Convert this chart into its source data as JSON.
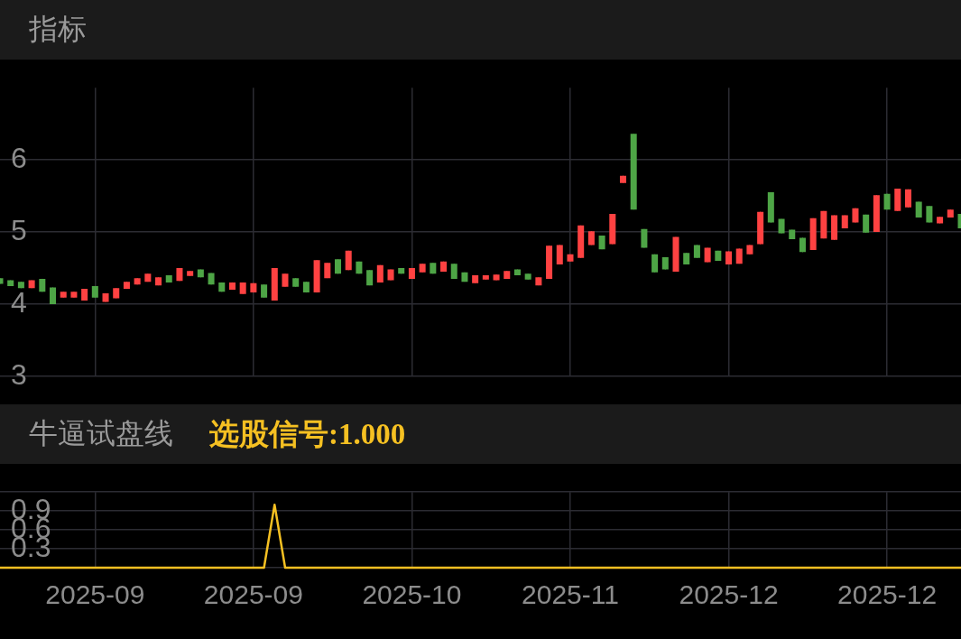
{
  "chart_data": [
    {
      "type": "candlestick",
      "title": "指标",
      "categories": [
        null,
        null,
        null,
        null,
        null,
        null,
        null,
        null,
        null,
        "2025-09",
        null,
        null,
        null,
        null,
        null,
        null,
        null,
        null,
        null,
        null,
        null,
        null,
        null,
        null,
        "2025-09",
        null,
        null,
        null,
        null,
        null,
        null,
        null,
        null,
        null,
        null,
        null,
        null,
        null,
        null,
        "2025-10",
        null,
        null,
        null,
        null,
        null,
        null,
        null,
        null,
        null,
        null,
        null,
        null,
        null,
        null,
        "2025-11",
        null,
        null,
        null,
        null,
        null,
        null,
        null,
        null,
        null,
        null,
        null,
        null,
        null,
        null,
        "2025-12",
        null,
        null,
        null,
        null,
        null,
        null,
        null,
        null,
        null,
        null,
        null,
        null,
        null,
        null,
        "2025-12",
        null,
        null,
        null,
        null,
        null,
        null,
        null
      ],
      "ohlc": [
        [
          4.36,
          4.36,
          4.28,
          4.28
        ],
        [
          4.33,
          4.33,
          4.25,
          4.25
        ],
        [
          4.31,
          4.31,
          4.22,
          4.22
        ],
        [
          4.22,
          4.33,
          4.22,
          4.33
        ],
        [
          4.35,
          4.35,
          4.17,
          4.17
        ],
        [
          4.23,
          4.23,
          4.0,
          4.0
        ],
        [
          4.09,
          4.17,
          4.09,
          4.17
        ],
        [
          4.09,
          4.17,
          4.09,
          4.17
        ],
        [
          4.05,
          4.21,
          4.05,
          4.21
        ],
        [
          4.25,
          4.25,
          4.09,
          4.09
        ],
        [
          4.03,
          4.15,
          4.03,
          4.15
        ],
        [
          4.08,
          4.22,
          4.08,
          4.22
        ],
        [
          4.21,
          4.31,
          4.21,
          4.31
        ],
        [
          4.27,
          4.36,
          4.27,
          4.36
        ],
        [
          4.31,
          4.42,
          4.31,
          4.42
        ],
        [
          4.26,
          4.37,
          4.26,
          4.37
        ],
        [
          4.4,
          4.4,
          4.3,
          4.3
        ],
        [
          4.32,
          4.5,
          4.32,
          4.5
        ],
        [
          4.39,
          4.46,
          4.39,
          4.46
        ],
        [
          4.48,
          4.48,
          4.37,
          4.37
        ],
        [
          4.43,
          4.43,
          4.27,
          4.27
        ],
        [
          4.3,
          4.3,
          4.17,
          4.17
        ],
        [
          4.2,
          4.3,
          4.2,
          4.3
        ],
        [
          4.14,
          4.3,
          4.14,
          4.3
        ],
        [
          4.16,
          4.29,
          4.16,
          4.29
        ],
        [
          4.27,
          4.27,
          4.09,
          4.09
        ],
        [
          4.05,
          4.5,
          4.05,
          4.5
        ],
        [
          4.24,
          4.42,
          4.24,
          4.42
        ],
        [
          4.36,
          4.36,
          4.24,
          4.24
        ],
        [
          4.31,
          4.31,
          4.16,
          4.16
        ],
        [
          4.16,
          4.61,
          4.16,
          4.61
        ],
        [
          4.36,
          4.57,
          4.36,
          4.57
        ],
        [
          4.62,
          4.62,
          4.42,
          4.42
        ],
        [
          4.47,
          4.74,
          4.47,
          4.74
        ],
        [
          4.59,
          4.59,
          4.42,
          4.42
        ],
        [
          4.47,
          4.47,
          4.26,
          4.26
        ],
        [
          4.3,
          4.54,
          4.3,
          4.54
        ],
        [
          4.33,
          4.48,
          4.33,
          4.48
        ],
        [
          4.5,
          4.5,
          4.42,
          4.42
        ],
        [
          4.35,
          4.5,
          4.35,
          4.5
        ],
        [
          4.44,
          4.56,
          4.44,
          4.56
        ],
        [
          4.57,
          4.57,
          4.42,
          4.42
        ],
        [
          4.45,
          4.59,
          4.45,
          4.59
        ],
        [
          4.56,
          4.56,
          4.35,
          4.35
        ],
        [
          4.44,
          4.44,
          4.31,
          4.31
        ],
        [
          4.29,
          4.4,
          4.29,
          4.4
        ],
        [
          4.34,
          4.4,
          4.34,
          4.4
        ],
        [
          4.33,
          4.41,
          4.33,
          4.41
        ],
        [
          4.35,
          4.46,
          4.35,
          4.46
        ],
        [
          4.48,
          4.48,
          4.4,
          4.4
        ],
        [
          4.42,
          4.42,
          4.34,
          4.34
        ],
        [
          4.26,
          4.37,
          4.26,
          4.37
        ],
        [
          4.35,
          4.81,
          4.35,
          4.81
        ],
        [
          4.55,
          4.82,
          4.55,
          4.82
        ],
        [
          4.59,
          4.69,
          4.59,
          4.69
        ],
        [
          4.64,
          5.09,
          4.64,
          5.09
        ],
        [
          4.82,
          5.01,
          4.82,
          5.01
        ],
        [
          4.95,
          4.95,
          4.76,
          4.76
        ],
        [
          4.83,
          5.25,
          4.83,
          5.25
        ],
        [
          5.68,
          5.78,
          5.68,
          5.78
        ],
        [
          6.36,
          6.36,
          5.31,
          5.31
        ],
        [
          5.04,
          5.04,
          4.78,
          4.78
        ],
        [
          4.69,
          4.69,
          4.44,
          4.44
        ],
        [
          4.65,
          4.65,
          4.48,
          4.48
        ],
        [
          4.45,
          4.93,
          4.45,
          4.93
        ],
        [
          4.71,
          4.71,
          4.55,
          4.55
        ],
        [
          4.82,
          4.82,
          4.64,
          4.64
        ],
        [
          4.58,
          4.78,
          4.58,
          4.78
        ],
        [
          4.74,
          4.74,
          4.6,
          4.6
        ],
        [
          4.55,
          4.73,
          4.55,
          4.73
        ],
        [
          4.56,
          4.77,
          4.56,
          4.77
        ],
        [
          4.69,
          4.82,
          4.69,
          4.82
        ],
        [
          4.83,
          5.28,
          4.83,
          5.28
        ],
        [
          5.55,
          5.55,
          5.13,
          5.13
        ],
        [
          5.18,
          5.18,
          4.98,
          4.98
        ],
        [
          5.03,
          5.03,
          4.9,
          4.9
        ],
        [
          4.92,
          4.92,
          4.72,
          4.72
        ],
        [
          4.75,
          5.19,
          4.75,
          5.19
        ],
        [
          4.91,
          5.29,
          4.91,
          5.29
        ],
        [
          4.89,
          5.23,
          4.89,
          5.23
        ],
        [
          5.05,
          5.23,
          5.05,
          5.23
        ],
        [
          5.13,
          5.33,
          5.13,
          5.33
        ],
        [
          5.24,
          5.24,
          4.99,
          4.99
        ],
        [
          5.0,
          5.51,
          5.0,
          5.51
        ],
        [
          5.53,
          5.53,
          5.31,
          5.31
        ],
        [
          5.29,
          5.6,
          5.29,
          5.6
        ],
        [
          5.34,
          5.59,
          5.34,
          5.59
        ],
        [
          5.42,
          5.42,
          5.2,
          5.2
        ],
        [
          5.36,
          5.36,
          5.13,
          5.13
        ],
        [
          5.12,
          5.21,
          5.12,
          5.21
        ],
        [
          5.2,
          5.31,
          5.2,
          5.31
        ],
        [
          5.25,
          5.25,
          5.05,
          5.05
        ]
      ],
      "colors": [
        "#4ea546",
        "#4ea546",
        "#4ea546",
        "#ff4242",
        "#4ea546",
        "#4ea546",
        "#ff4242",
        "#ff4242",
        "#ff4242",
        "#4ea546",
        "#ff4242",
        "#ff4242",
        "#ff4242",
        "#ff4242",
        "#ff4242",
        "#ff4242",
        "#4ea546",
        "#ff4242",
        "#ff4242",
        "#4ea546",
        "#4ea546",
        "#4ea546",
        "#ff4242",
        "#ff4242",
        "#ff4242",
        "#4ea546",
        "#ff4242",
        "#ff4242",
        "#4ea546",
        "#4ea546",
        "#ff4242",
        "#ff4242",
        "#4ea546",
        "#ff4242",
        "#4ea546",
        "#4ea546",
        "#ff4242",
        "#ff4242",
        "#4ea546",
        "#ff4242",
        "#ff4242",
        "#4ea546",
        "#ff4242",
        "#4ea546",
        "#4ea546",
        "#ff4242",
        "#ff4242",
        "#ff4242",
        "#ff4242",
        "#4ea546",
        "#4ea546",
        "#ff4242",
        "#ff4242",
        "#ff4242",
        "#ff4242",
        "#ff4242",
        "#ff4242",
        "#4ea546",
        "#ff4242",
        "#ff4242",
        "#4ea546",
        "#4ea546",
        "#4ea546",
        "#4ea546",
        "#ff4242",
        "#4ea546",
        "#4ea546",
        "#ff4242",
        "#4ea546",
        "#ff4242",
        "#ff4242",
        "#ff4242",
        "#ff4242",
        "#4ea546",
        "#4ea546",
        "#4ea546",
        "#4ea546",
        "#ff4242",
        "#ff4242",
        "#ff4242",
        "#ff4242",
        "#ff4242",
        "#4ea546",
        "#ff4242",
        "#4ea546",
        "#ff4242",
        "#ff4242",
        "#4ea546",
        "#4ea546",
        "#ff4242",
        "#ff4242",
        "#4ea546"
      ],
      "ylim": [
        3,
        7
      ],
      "yticks": [
        3,
        4,
        5,
        6
      ],
      "grid": true,
      "legend": false,
      "tick_labels": "y"
    },
    {
      "type": "line",
      "title": "牛逼试盘线",
      "subtitle": "选股信号:1.000",
      "categories": [
        null,
        null,
        null,
        null,
        null,
        null,
        null,
        null,
        null,
        "2025-09",
        null,
        null,
        null,
        null,
        null,
        null,
        null,
        null,
        null,
        null,
        null,
        null,
        null,
        null,
        "2025-09",
        null,
        null,
        null,
        null,
        null,
        null,
        null,
        null,
        null,
        null,
        null,
        null,
        null,
        null,
        "2025-10",
        null,
        null,
        null,
        null,
        null,
        null,
        null,
        null,
        null,
        null,
        null,
        null,
        null,
        null,
        "2025-11",
        null,
        null,
        null,
        null,
        null,
        null,
        null,
        null,
        null,
        null,
        null,
        null,
        null,
        null,
        "2025-12",
        null,
        null,
        null,
        null,
        null,
        null,
        null,
        null,
        null,
        null,
        null,
        null,
        null,
        null,
        "2025-12",
        null,
        null,
        null,
        null,
        null,
        null,
        null
      ],
      "series": [
        {
          "color": "#f5c022",
          "values": [
            0,
            0,
            0,
            0,
            0,
            0,
            0,
            0,
            0,
            0,
            0,
            0,
            0,
            0,
            0,
            0,
            0,
            0,
            0,
            0,
            0,
            0,
            0,
            0,
            0,
            0,
            1,
            0,
            0,
            0,
            0,
            0,
            0,
            0,
            0,
            0,
            0,
            0,
            0,
            0,
            0,
            0,
            0,
            0,
            0,
            0,
            0,
            0,
            0,
            0,
            0,
            0,
            0,
            0,
            0,
            0,
            0,
            0,
            0,
            0,
            0,
            0,
            0,
            0,
            0,
            0,
            0,
            0,
            0,
            0,
            0,
            0,
            0,
            0,
            0,
            0,
            0,
            0,
            0,
            0,
            0,
            0,
            0,
            0,
            0,
            0,
            0,
            0,
            0,
            0,
            0,
            0
          ]
        }
      ],
      "ylim": [
        0,
        1.2
      ],
      "yticks": [
        {
          "value": 0,
          "label": null
        },
        0.3,
        0.6,
        0.9,
        {
          "value": 1.2,
          "label": null
        }
      ],
      "grid": true,
      "legend": false,
      "marker": "none",
      "line_style": "solid"
    }
  ]
}
